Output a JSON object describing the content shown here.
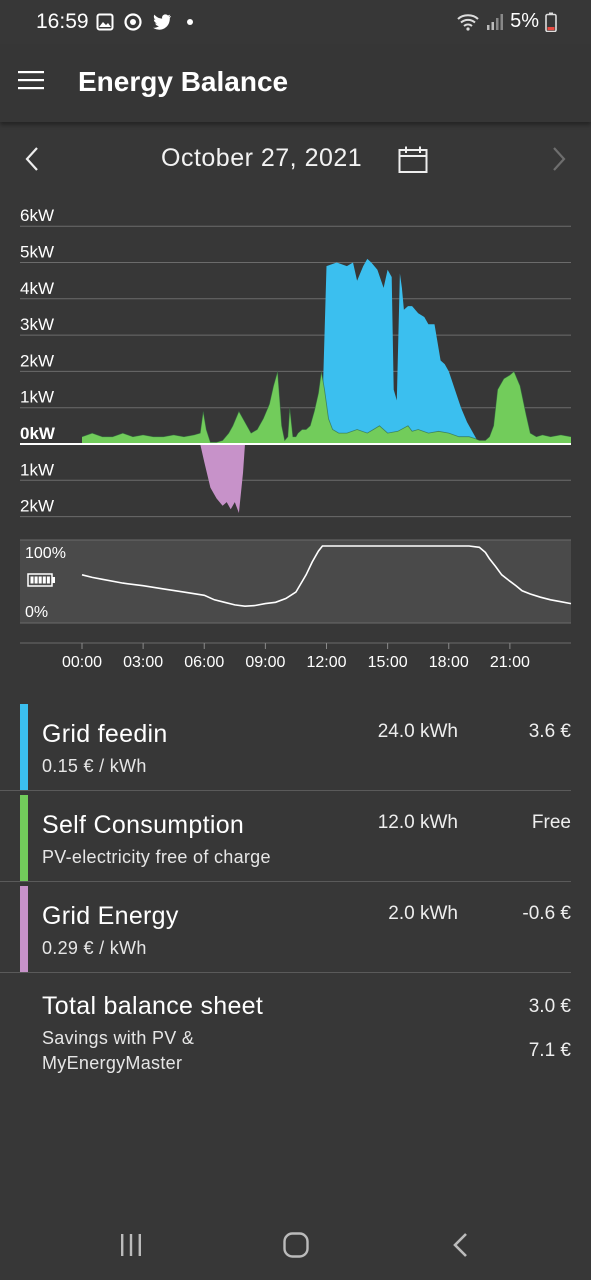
{
  "status_bar": {
    "time": "16:59",
    "battery_percent": "5%",
    "icons": [
      "gallery-icon",
      "sync-icon",
      "twitter-icon",
      "dot-icon",
      "wifi-icon",
      "signal-icon",
      "battery-icon"
    ]
  },
  "app_bar": {
    "title": "Energy Balance",
    "menu_icon": "hamburger-menu-icon"
  },
  "date_nav": {
    "date": "October 27, 2021",
    "prev_icon": "chevron-left-icon",
    "next_icon": "chevron-right-icon",
    "calendar_icon": "calendar-icon"
  },
  "chart_data": {
    "type": "area",
    "y_tick_labels": [
      "6kW",
      "5kW",
      "4kW",
      "3kW",
      "2kW",
      "1kW",
      "0kW",
      "1kW",
      "2kW"
    ],
    "y_ticks_kw": [
      6,
      5,
      4,
      3,
      2,
      1,
      0,
      -1,
      -2
    ],
    "ylim_kw": [
      -2,
      6
    ],
    "x_tick_labels": [
      "00:00",
      "03:00",
      "06:00",
      "09:00",
      "12:00",
      "15:00",
      "18:00",
      "21:00"
    ],
    "x_ticks_hours": [
      0,
      3,
      6,
      9,
      12,
      15,
      18,
      21
    ],
    "xlim_hours": [
      0,
      24
    ],
    "colors": {
      "grid_feedin": "#3bbfef",
      "self_consumption": "#72cc5b",
      "grid_energy": "#c792c9",
      "battery": "#ffffff"
    },
    "series": [
      {
        "name": "Grid feedin",
        "hours": [
          11.6,
          11.8,
          12.0,
          12.5,
          13.0,
          13.3,
          13.5,
          13.8,
          14.0,
          14.2,
          14.5,
          14.8,
          15.0,
          15.2,
          15.3,
          15.45,
          15.6,
          15.7,
          15.8,
          16.0,
          16.2,
          16.5,
          16.8,
          17.0,
          17.3,
          17.6,
          17.8,
          18.0,
          18.3,
          18.6,
          18.9,
          19.2,
          19.5
        ],
        "kw": [
          0,
          1.0,
          4.9,
          5.0,
          4.9,
          5.0,
          4.5,
          4.9,
          5.1,
          5.0,
          4.8,
          4.3,
          4.8,
          4.6,
          1.5,
          1.2,
          4.7,
          4.3,
          3.7,
          3.8,
          3.8,
          3.6,
          3.5,
          3.3,
          3.3,
          2.3,
          2.2,
          2.0,
          1.5,
          1.0,
          0.6,
          0.3,
          0
        ]
      },
      {
        "name": "Self Consumption",
        "hours": [
          0,
          0.5,
          1.0,
          1.5,
          2.0,
          2.5,
          3.0,
          3.5,
          4.0,
          4.5,
          5.0,
          5.5,
          5.8,
          5.95,
          6.1,
          6.3,
          6.6,
          6.9,
          7.2,
          7.4,
          7.7,
          8.0,
          8.3,
          8.6,
          8.9,
          9.2,
          9.4,
          9.6,
          9.8,
          9.95,
          10.1,
          10.2,
          10.35,
          10.5,
          10.6,
          10.8,
          11.0,
          11.2,
          11.4,
          11.6,
          11.75,
          11.9,
          12.1,
          12.3,
          12.6,
          13.0,
          13.5,
          14.0,
          14.3,
          14.6,
          15.0,
          15.5,
          16.0,
          16.2,
          16.5,
          17.0,
          17.5,
          18.0,
          18.5,
          19.0,
          19.3,
          19.5,
          19.8,
          20.0,
          20.2,
          20.4,
          20.7,
          21.0,
          21.2,
          21.5,
          21.8,
          22.0,
          22.3,
          22.6,
          23.0,
          23.5,
          24.0
        ],
        "kw": [
          0.2,
          0.3,
          0.2,
          0.2,
          0.3,
          0.2,
          0.25,
          0.2,
          0.2,
          0.25,
          0.2,
          0.25,
          0.3,
          0.9,
          0.4,
          0.05,
          0.05,
          0.1,
          0.3,
          0.5,
          0.9,
          0.6,
          0.3,
          0.4,
          0.7,
          1.1,
          1.6,
          2.0,
          0.5,
          0.1,
          0.2,
          1.0,
          0.2,
          0.2,
          0.3,
          0.4,
          0.4,
          0.5,
          0.9,
          1.4,
          2.0,
          1.5,
          0.7,
          0.4,
          0.3,
          0.3,
          0.4,
          0.3,
          0.4,
          0.5,
          0.3,
          0.35,
          0.5,
          0.35,
          0.4,
          0.3,
          0.35,
          0.3,
          0.2,
          0.2,
          0.15,
          0.1,
          0.1,
          0.2,
          0.5,
          1.5,
          1.8,
          1.9,
          2.0,
          1.6,
          0.8,
          0.3,
          0.2,
          0.25,
          0.2,
          0.25,
          0.2
        ]
      },
      {
        "name": "Grid Energy",
        "hours": [
          5.8,
          6.0,
          6.3,
          6.6,
          6.9,
          7.1,
          7.3,
          7.5,
          7.7,
          7.9,
          8.0
        ],
        "kw": [
          0,
          -0.5,
          -1.2,
          -1.5,
          -1.7,
          -1.6,
          -1.8,
          -1.6,
          -1.9,
          -0.8,
          0
        ]
      },
      {
        "name": "Battery",
        "unit": "%",
        "ylim": [
          0,
          100
        ],
        "y_tick_labels": [
          "100%",
          "0%"
        ],
        "hours": [
          0,
          0.5,
          1.0,
          2.0,
          3.0,
          4.0,
          5.0,
          6.0,
          6.5,
          7.0,
          7.5,
          8.0,
          8.5,
          9.0,
          9.5,
          10.0,
          10.5,
          11.0,
          11.3,
          11.6,
          11.8,
          12.0,
          12.5,
          13.0,
          14.0,
          15.0,
          16.0,
          17.0,
          18.0,
          19.0,
          19.5,
          19.8,
          20.0,
          20.3,
          20.6,
          21.0,
          21.3,
          21.6,
          22.0,
          22.5,
          23.0,
          23.5,
          24.0
        ],
        "pct": [
          55,
          51,
          48,
          42,
          38,
          33,
          28,
          23,
          16,
          12,
          8,
          6,
          7,
          10,
          12,
          18,
          28,
          55,
          75,
          92,
          100,
          100,
          100,
          100,
          100,
          100,
          100,
          100,
          100,
          100,
          98,
          90,
          80,
          68,
          55,
          45,
          38,
          30,
          25,
          20,
          16,
          13,
          10
        ]
      }
    ]
  },
  "summary": {
    "rows": [
      {
        "name": "Grid feedin",
        "sub": "0.15 € / kWh",
        "kwh": "24.0 kWh",
        "amount": "3.6 €",
        "color": "#3bbfef"
      },
      {
        "name": "Self Consumption",
        "sub": "PV-electricity free of charge",
        "kwh": "12.0 kWh",
        "amount": "Free",
        "color": "#72cc5b"
      },
      {
        "name": "Grid Energy",
        "sub": "0.29 € / kWh",
        "kwh": "2.0 kWh",
        "amount": "-0.6 €",
        "color": "#c792c9"
      }
    ],
    "total": {
      "name": "Total balance sheet",
      "sub": "Savings with PV & MyEnergyMaster",
      "value": "3.0 €",
      "savings": "7.1 €"
    }
  },
  "nav_bar": {
    "icons": [
      "recent-apps-icon",
      "home-icon",
      "back-icon"
    ]
  }
}
